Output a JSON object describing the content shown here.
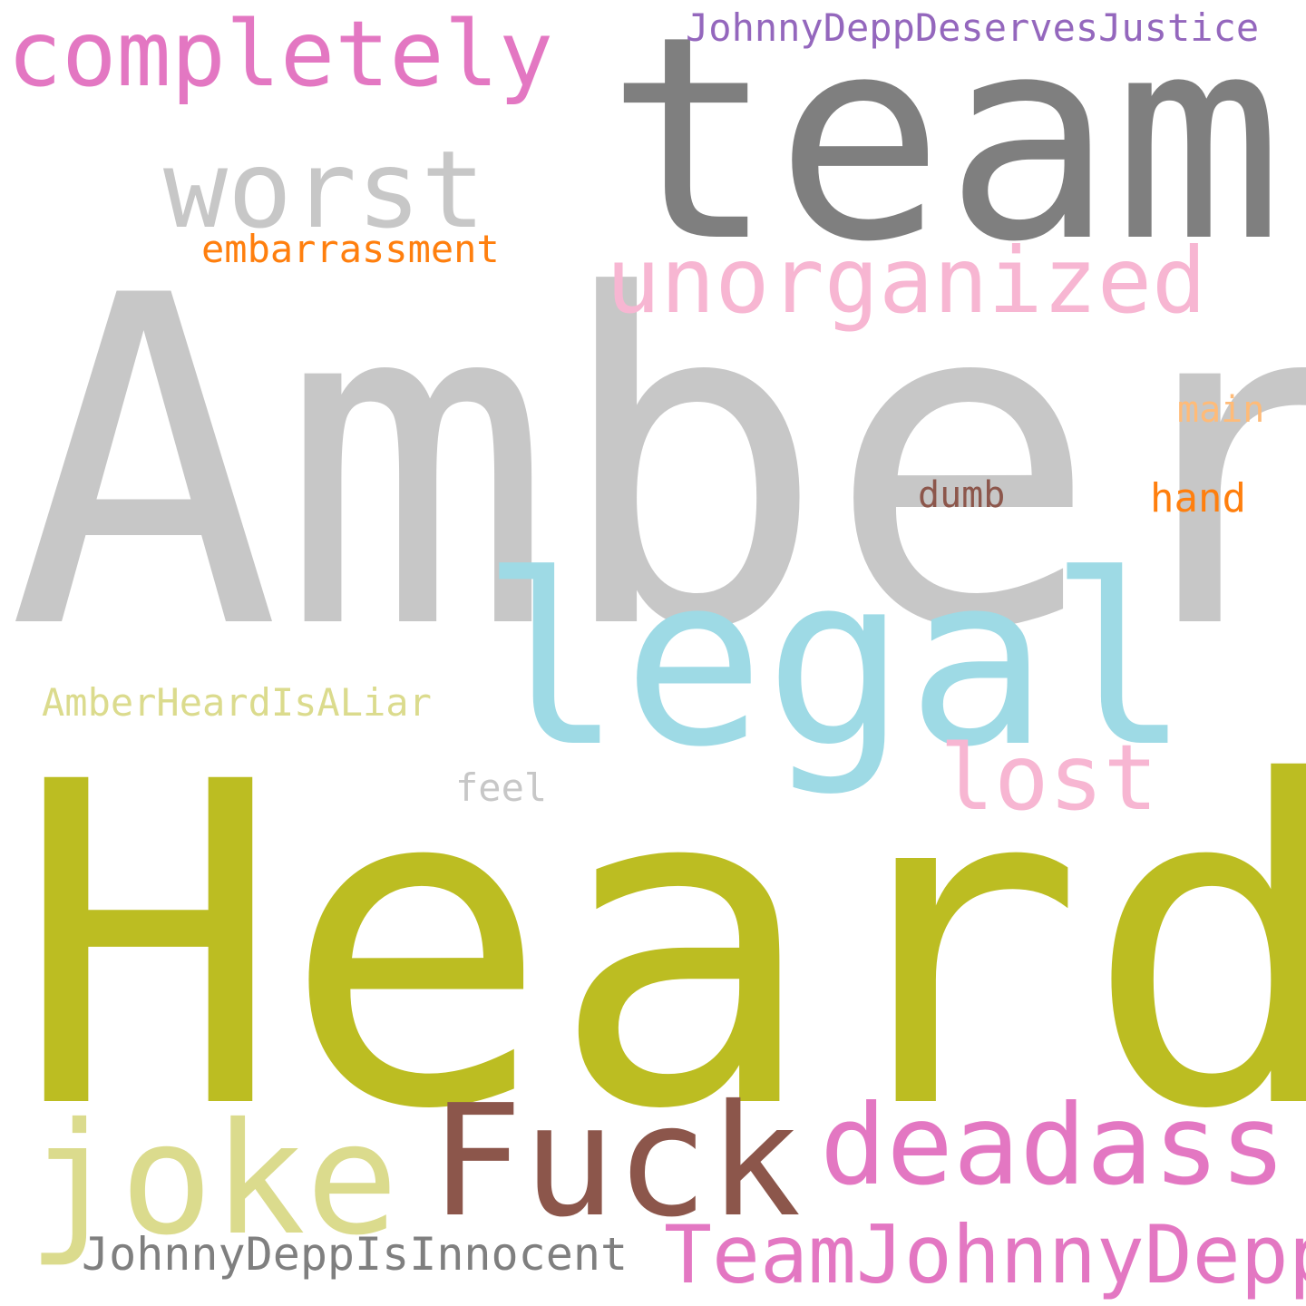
{
  "cloud": {
    "words": {
      "amber": {
        "text": "Amber",
        "color": "#c7c7c7"
      },
      "heard": {
        "text": "Heard",
        "color": "#bcbd22"
      },
      "team": {
        "text": "team",
        "color": "#7f7f7f"
      },
      "completely": {
        "text": "completely",
        "color": "#e377c2"
      },
      "worst": {
        "text": "worst",
        "color": "#c7c7c7"
      },
      "embarrassment": {
        "text": "embarrassment",
        "color": "#ff7f0e"
      },
      "unorganized": {
        "text": "unorganized",
        "color": "#f7b6d2"
      },
      "johnnydeppdeservesjustice": {
        "text": "JohnnyDeppDeservesJustice",
        "color": "#9467bd"
      },
      "main": {
        "text": "main",
        "color": "#ffbb78"
      },
      "dumb": {
        "text": "dumb",
        "color": "#8c564b"
      },
      "hand": {
        "text": "hand",
        "color": "#ff7f0e"
      },
      "legal": {
        "text": "legal",
        "color": "#9edae5"
      },
      "amberheardisaliar": {
        "text": "AmberHeardIsALiar",
        "color": "#dbdb8d"
      },
      "lost": {
        "text": "lost",
        "color": "#f7b6d2"
      },
      "feel": {
        "text": "feel",
        "color": "#c7c7c7"
      },
      "joke": {
        "text": "joke",
        "color": "#dbdb8d"
      },
      "fuck": {
        "text": "Fuck",
        "color": "#8c564b"
      },
      "deadass": {
        "text": "deadass",
        "color": "#e377c2"
      },
      "teamjohnnydepp": {
        "text": "TeamJohnnyDepp",
        "color": "#e377c2"
      },
      "johnnydeppisinnocent": {
        "text": "JohnnyDeppIsInnocent",
        "color": "#7f7f7f"
      }
    }
  }
}
